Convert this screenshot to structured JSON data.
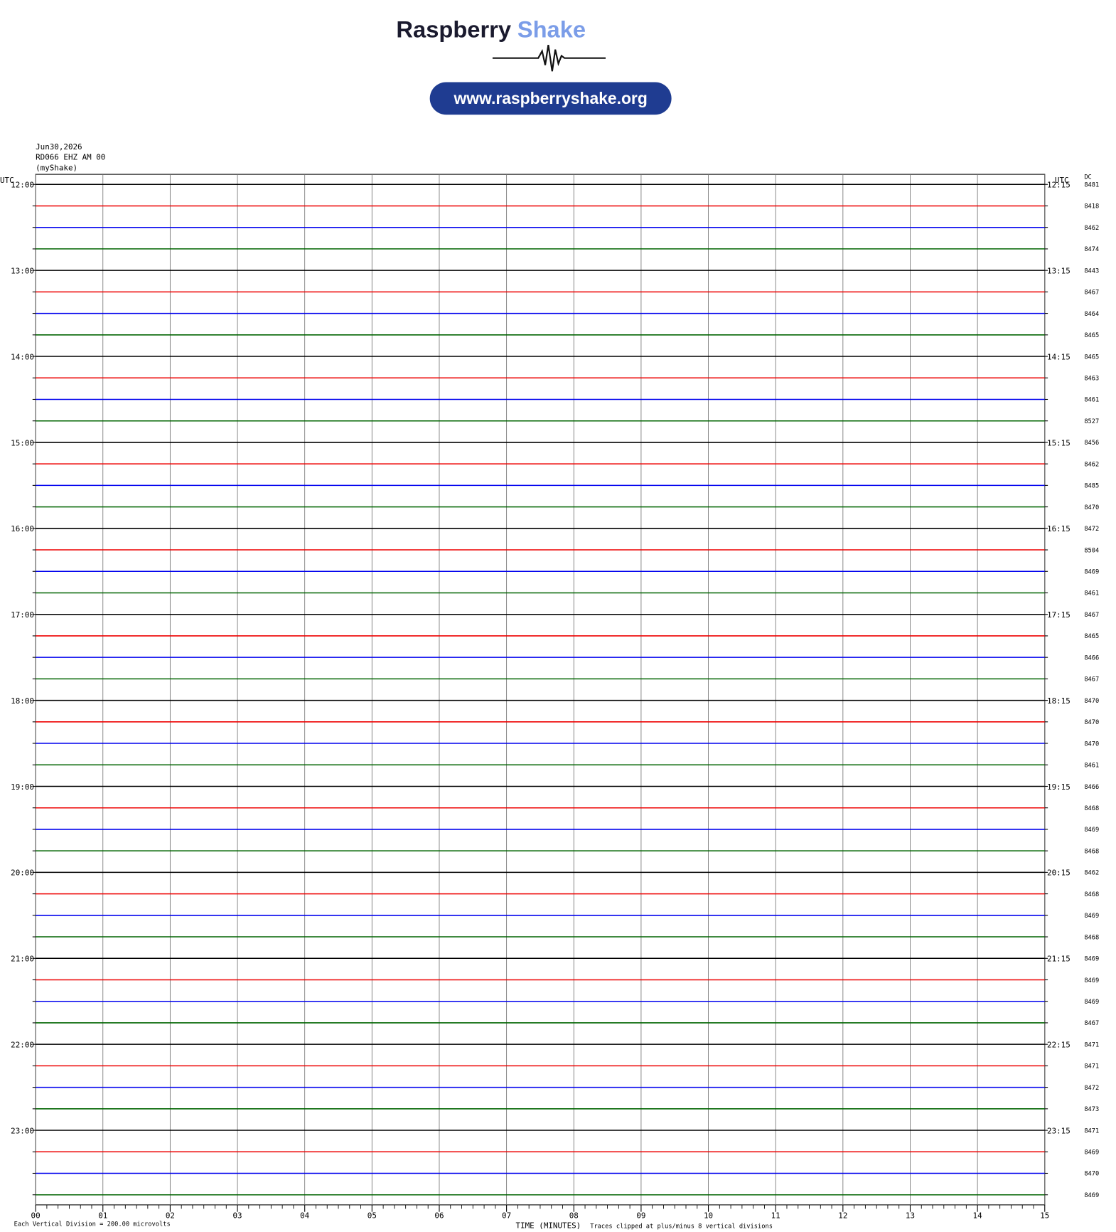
{
  "header": {
    "brand_first": "Raspberry",
    "brand_second": "Shake",
    "url": "www.raspberryshake.org"
  },
  "info": {
    "date": "Jun30,2026",
    "station": "RD066 EHZ AM 00",
    "owner": "(myShake)"
  },
  "axis": {
    "left_unit": "UTC",
    "right_unit": "UTC",
    "dc_title": "DC",
    "x_ticks": [
      "00",
      "01",
      "02",
      "03",
      "04",
      "05",
      "06",
      "07",
      "08",
      "09",
      "10",
      "11",
      "12",
      "13",
      "14",
      "15"
    ],
    "x_title": "TIME (MINUTES)"
  },
  "footer": {
    "division": "Each Vertical Division =  200.00 microvolts",
    "clip": "Traces clipped at plus/minus 8 vertical divisions"
  },
  "colors": [
    "#000000",
    "#ee0000",
    "#0000ee",
    "#006400"
  ],
  "rows": [
    {
      "left": "12:00",
      "right": "12:15",
      "dc": "8481"
    },
    {
      "left": null,
      "right": null,
      "dc": "8418"
    },
    {
      "left": null,
      "right": null,
      "dc": "8462"
    },
    {
      "left": null,
      "right": null,
      "dc": "8474"
    },
    {
      "left": "13:00",
      "right": "13:15",
      "dc": "8443"
    },
    {
      "left": null,
      "right": null,
      "dc": "8467"
    },
    {
      "left": null,
      "right": null,
      "dc": "8464"
    },
    {
      "left": null,
      "right": null,
      "dc": "8465"
    },
    {
      "left": "14:00",
      "right": "14:15",
      "dc": "8465"
    },
    {
      "left": null,
      "right": null,
      "dc": "8463"
    },
    {
      "left": null,
      "right": null,
      "dc": "8461"
    },
    {
      "left": null,
      "right": null,
      "dc": "8527"
    },
    {
      "left": "15:00",
      "right": "15:15",
      "dc": "8456"
    },
    {
      "left": null,
      "right": null,
      "dc": "8462"
    },
    {
      "left": null,
      "right": null,
      "dc": "8485"
    },
    {
      "left": null,
      "right": null,
      "dc": "8470"
    },
    {
      "left": "16:00",
      "right": "16:15",
      "dc": "8472"
    },
    {
      "left": null,
      "right": null,
      "dc": "8504"
    },
    {
      "left": null,
      "right": null,
      "dc": "8469"
    },
    {
      "left": null,
      "right": null,
      "dc": "8461"
    },
    {
      "left": "17:00",
      "right": "17:15",
      "dc": "8467"
    },
    {
      "left": null,
      "right": null,
      "dc": "8465"
    },
    {
      "left": null,
      "right": null,
      "dc": "8466"
    },
    {
      "left": null,
      "right": null,
      "dc": "8467"
    },
    {
      "left": "18:00",
      "right": "18:15",
      "dc": "8470"
    },
    {
      "left": null,
      "right": null,
      "dc": "8470"
    },
    {
      "left": null,
      "right": null,
      "dc": "8470"
    },
    {
      "left": null,
      "right": null,
      "dc": "8461"
    },
    {
      "left": "19:00",
      "right": "19:15",
      "dc": "8466"
    },
    {
      "left": null,
      "right": null,
      "dc": "8468"
    },
    {
      "left": null,
      "right": null,
      "dc": "8469"
    },
    {
      "left": null,
      "right": null,
      "dc": "8468"
    },
    {
      "left": "20:00",
      "right": "20:15",
      "dc": "8462"
    },
    {
      "left": null,
      "right": null,
      "dc": "8468"
    },
    {
      "left": null,
      "right": null,
      "dc": "8469"
    },
    {
      "left": null,
      "right": null,
      "dc": "8468"
    },
    {
      "left": "21:00",
      "right": "21:15",
      "dc": "8469"
    },
    {
      "left": null,
      "right": null,
      "dc": "8469"
    },
    {
      "left": null,
      "right": null,
      "dc": "8469"
    },
    {
      "left": null,
      "right": null,
      "dc": "8467"
    },
    {
      "left": "22:00",
      "right": "22:15",
      "dc": "8471"
    },
    {
      "left": null,
      "right": null,
      "dc": "8471"
    },
    {
      "left": null,
      "right": null,
      "dc": "8472"
    },
    {
      "left": null,
      "right": null,
      "dc": "8473"
    },
    {
      "left": "23:00",
      "right": "23:15",
      "dc": "8471"
    },
    {
      "left": null,
      "right": null,
      "dc": "8469"
    },
    {
      "left": null,
      "right": null,
      "dc": "8470"
    },
    {
      "left": null,
      "right": null,
      "dc": "8469"
    }
  ]
}
